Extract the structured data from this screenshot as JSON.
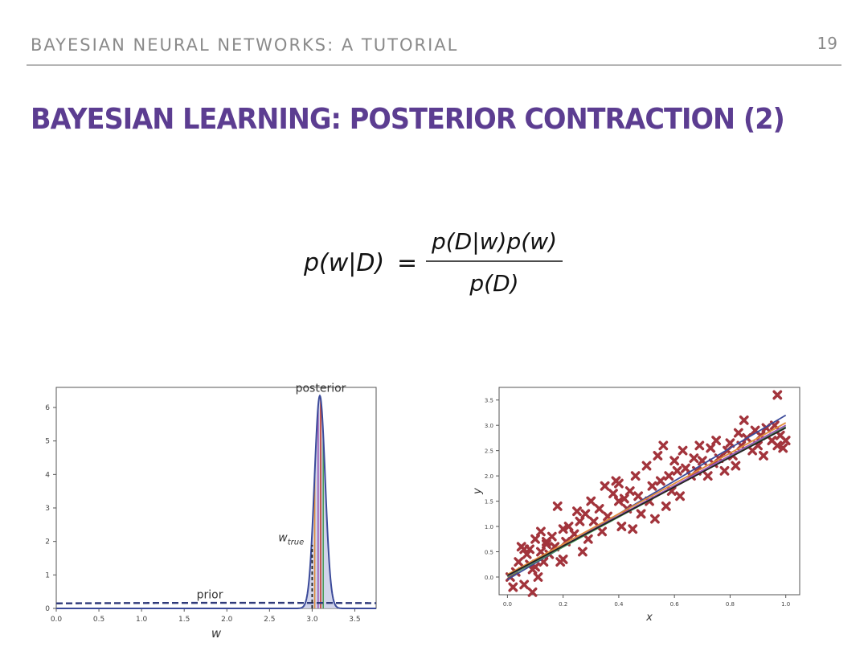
{
  "header": {
    "series_title": "BAYESIAN NEURAL NETWORKS: A TUTORIAL",
    "page_number": "19"
  },
  "slide": {
    "title": "BAYESIAN LEARNING: POSTERIOR CONTRACTION (2)",
    "equation": {
      "lhs": "p(w|D)",
      "equals": "=",
      "numerator": "p(D|w)p(w)",
      "denominator": "p(D)"
    }
  },
  "colors": {
    "title": "#5c3d91",
    "header": "#8a8a8a",
    "curve": "#3b4a9a",
    "marker": "#a2343c"
  },
  "chart_data": [
    {
      "type": "line",
      "xlabel": "w",
      "ylabel": "",
      "xlim": [
        0.0,
        3.75
      ],
      "ylim": [
        0,
        6.6
      ],
      "xticks": [
        "0.0",
        "0.5",
        "1.0",
        "1.5",
        "2.0",
        "2.5",
        "3.0",
        "3.5"
      ],
      "yticks": [
        "0",
        "1",
        "2",
        "3",
        "4",
        "5",
        "6"
      ],
      "annotations": [
        {
          "text": "posterior",
          "x": 3.1,
          "y": 6.45
        },
        {
          "text": "w",
          "subscript": "true",
          "x": 2.98,
          "y": 2.0
        },
        {
          "text": "prior",
          "x": 1.8,
          "y": 0.25
        }
      ],
      "series": [
        {
          "name": "prior",
          "style": "dashed",
          "prior_mean": 2.2,
          "prior_sd": 4.8,
          "x": [
            0.0,
            1.0,
            2.0,
            3.0,
            3.75
          ],
          "y": [
            0.13,
            0.15,
            0.17,
            0.16,
            0.15
          ]
        },
        {
          "name": "posterior",
          "style": "solid",
          "mean": 3.09,
          "sd": 0.063,
          "x": [
            2.9,
            3.0,
            3.05,
            3.09,
            3.13,
            3.2,
            3.3
          ],
          "y": [
            0.0,
            0.9,
            5.0,
            6.35,
            5.0,
            0.9,
            0.0
          ]
        }
      ],
      "w_true": 3.0,
      "sample_lines": [
        3.03,
        3.07,
        3.1,
        3.13
      ],
      "grid": false,
      "legend": "none"
    },
    {
      "type": "scatter",
      "xlabel": "x",
      "ylabel": "y",
      "xlim": [
        -0.03,
        1.05
      ],
      "ylim": [
        -0.35,
        3.75
      ],
      "xticks": [
        "0.0",
        "0.2",
        "0.4",
        "0.6",
        "0.8",
        "1.0"
      ],
      "yticks": [
        "0.0",
        "0.5",
        "1.0",
        "1.5",
        "2.0",
        "2.5",
        "3.0",
        "3.5"
      ],
      "x": [
        0.01,
        0.02,
        0.03,
        0.04,
        0.05,
        0.06,
        0.07,
        0.08,
        0.09,
        0.1,
        0.1,
        0.11,
        0.12,
        0.12,
        0.13,
        0.14,
        0.15,
        0.16,
        0.17,
        0.18,
        0.2,
        0.2,
        0.21,
        0.22,
        0.24,
        0.25,
        0.26,
        0.27,
        0.28,
        0.29,
        0.3,
        0.31,
        0.33,
        0.34,
        0.35,
        0.36,
        0.38,
        0.39,
        0.4,
        0.4,
        0.41,
        0.42,
        0.43,
        0.44,
        0.45,
        0.46,
        0.47,
        0.48,
        0.5,
        0.51,
        0.52,
        0.53,
        0.54,
        0.55,
        0.56,
        0.57,
        0.58,
        0.59,
        0.6,
        0.61,
        0.62,
        0.63,
        0.64,
        0.66,
        0.67,
        0.68,
        0.69,
        0.7,
        0.72,
        0.73,
        0.74,
        0.75,
        0.76,
        0.78,
        0.79,
        0.8,
        0.81,
        0.82,
        0.83,
        0.84,
        0.85,
        0.86,
        0.88,
        0.89,
        0.9,
        0.91,
        0.92,
        0.93,
        0.95,
        0.96,
        0.97,
        0.98,
        0.99,
        1.0,
        0.97,
        0.08,
        0.14,
        0.06,
        0.19,
        0.09
      ],
      "y": [
        0.0,
        -0.2,
        0.1,
        0.3,
        0.6,
        -0.15,
        0.45,
        0.55,
        -0.3,
        0.2,
        0.75,
        0.0,
        0.5,
        0.9,
        0.3,
        0.7,
        0.45,
        0.8,
        0.6,
        1.4,
        0.35,
        0.95,
        0.7,
        1.0,
        0.85,
        1.3,
        1.1,
        0.5,
        1.25,
        0.75,
        1.5,
        1.1,
        1.35,
        0.9,
        1.8,
        1.2,
        1.65,
        1.9,
        1.5,
        1.85,
        1.0,
        1.55,
        1.35,
        1.7,
        0.95,
        2.0,
        1.6,
        1.25,
        2.2,
        1.5,
        1.8,
        1.15,
        2.4,
        1.9,
        2.6,
        1.4,
        2.0,
        1.7,
        2.3,
        2.1,
        1.6,
        2.5,
        2.15,
        2.0,
        2.35,
        2.1,
        2.6,
        2.3,
        2.0,
        2.55,
        2.25,
        2.7,
        2.35,
        2.1,
        2.5,
        2.65,
        2.4,
        2.2,
        2.85,
        2.6,
        3.1,
        2.75,
        2.5,
        2.9,
        2.6,
        2.8,
        2.4,
        2.95,
        2.7,
        3.0,
        2.6,
        2.8,
        2.55,
        2.7,
        3.6,
        0.25,
        0.65,
        0.55,
        0.3,
        0.15
      ],
      "fit_lines": [
        {
          "color": "#3b4a9a",
          "x": [
            0.0,
            1.0
          ],
          "y": [
            -0.05,
            3.2
          ]
        },
        {
          "color": "#e08a3a",
          "x": [
            0.0,
            1.0
          ],
          "y": [
            0.05,
            3.05
          ]
        },
        {
          "color": "#4a9a5a",
          "x": [
            0.0,
            1.0
          ],
          "y": [
            0.0,
            2.97
          ]
        },
        {
          "color": "#9b59b6",
          "x": [
            0.0,
            1.0
          ],
          "y": [
            0.02,
            3.0
          ]
        },
        {
          "color": "#222222",
          "x": [
            0.0,
            1.0
          ],
          "y": [
            0.03,
            2.95
          ]
        }
      ],
      "grid": false,
      "legend": "none"
    }
  ]
}
